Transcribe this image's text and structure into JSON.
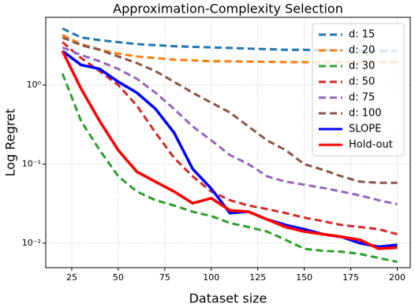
{
  "chart_data": {
    "type": "line",
    "title": "Approximation-Complexity Selection",
    "x_label": "Dataset size",
    "y_label": "Log Regret",
    "x": [
      20,
      30,
      40,
      50,
      60,
      70,
      80,
      90,
      100,
      110,
      120,
      130,
      140,
      150,
      160,
      170,
      180,
      190,
      200
    ],
    "series": [
      {
        "name": "d: 15",
        "color": "#1f77b4",
        "style": "dashed",
        "values": [
          5.2,
          4.0,
          3.7,
          3.5,
          3.3,
          3.2,
          3.1,
          3.05,
          3.0,
          2.95,
          2.9,
          2.85,
          2.8,
          2.8,
          2.75,
          2.75,
          2.7,
          2.7,
          2.7
        ]
      },
      {
        "name": "d: 20",
        "color": "#ff7f0e",
        "style": "dashed",
        "values": [
          4.3,
          3.3,
          2.8,
          2.5,
          2.3,
          2.2,
          2.1,
          2.05,
          2.0,
          2.0,
          1.98,
          1.97,
          1.95,
          1.95,
          1.95,
          1.95,
          1.95,
          1.95,
          1.95
        ]
      },
      {
        "name": "d: 30",
        "color": "#2ca02c",
        "style": "dashed",
        "values": [
          1.4,
          0.35,
          0.15,
          0.07,
          0.045,
          0.035,
          0.03,
          0.025,
          0.022,
          0.018,
          0.016,
          0.014,
          0.011,
          0.0085,
          0.008,
          0.0078,
          0.0073,
          0.0065,
          0.0058
        ]
      },
      {
        "name": "d: 50",
        "color": "#d62728",
        "style": "dashed",
        "values": [
          3.5,
          2.2,
          1.5,
          1.0,
          0.55,
          0.25,
          0.12,
          0.07,
          0.045,
          0.035,
          0.03,
          0.027,
          0.024,
          0.021,
          0.019,
          0.017,
          0.016,
          0.015,
          0.013
        ]
      },
      {
        "name": "d: 75",
        "color": "#9467bd",
        "style": "dashed",
        "values": [
          3.0,
          2.4,
          2.0,
          1.6,
          1.2,
          0.8,
          0.5,
          0.3,
          0.2,
          0.13,
          0.1,
          0.07,
          0.06,
          0.055,
          0.05,
          0.045,
          0.04,
          0.035,
          0.031
        ]
      },
      {
        "name": "d: 100",
        "color": "#8c564b",
        "style": "dashed",
        "values": [
          4.0,
          3.2,
          2.8,
          2.3,
          1.9,
          1.5,
          1.1,
          0.8,
          0.6,
          0.45,
          0.3,
          0.2,
          0.15,
          0.1,
          0.085,
          0.07,
          0.06,
          0.058,
          0.058
        ]
      },
      {
        "name": "SLOPE",
        "color": "#0000ff",
        "style": "solid",
        "values": [
          2.7,
          1.8,
          1.6,
          1.1,
          0.8,
          0.5,
          0.25,
          0.087,
          0.049,
          0.024,
          0.025,
          0.02,
          0.017,
          0.015,
          0.013,
          0.012,
          0.01,
          0.009,
          0.0095
        ]
      },
      {
        "name": "Hold-out",
        "color": "#ff0000",
        "style": "solid",
        "values": [
          2.7,
          0.9,
          0.35,
          0.15,
          0.08,
          0.06,
          0.045,
          0.032,
          0.037,
          0.026,
          0.025,
          0.02,
          0.016,
          0.014,
          0.013,
          0.012,
          0.011,
          0.0085,
          0.0088
        ]
      }
    ],
    "xlim": [
      11,
      207
    ],
    "ylim": [
      0.0049,
      7.2
    ],
    "log_y": true,
    "xticks": [
      25,
      50,
      75,
      100,
      125,
      150,
      175,
      200
    ],
    "yticks": [
      {
        "value": 0.01,
        "label": "10⁻²"
      },
      {
        "value": 0.1,
        "label": "10⁻¹"
      },
      {
        "value": 1,
        "label": "10⁰"
      }
    ],
    "grid": true,
    "legend": "upper right"
  }
}
